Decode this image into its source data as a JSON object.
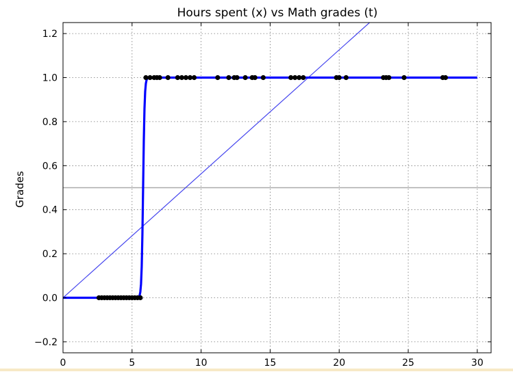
{
  "chart_data": {
    "type": "scatter",
    "title": "Hours spent (x) vs Math grades (t)",
    "xlabel": "",
    "ylabel": "Grades",
    "xlim": [
      0,
      31
    ],
    "ylim": [
      -0.25,
      1.25
    ],
    "x_ticks": [
      0,
      5,
      10,
      15,
      20,
      25,
      30
    ],
    "y_ticks": [
      -0.2,
      0.0,
      0.2,
      0.4,
      0.6,
      0.8,
      1.0,
      1.2
    ],
    "x_tick_labels": [
      "0",
      "5",
      "10",
      "15",
      "20",
      "25",
      "30"
    ],
    "y_tick_labels": [
      "−0.2",
      "0.0",
      "0.2",
      "0.4",
      "0.6",
      "0.8",
      "1.0",
      "1.2"
    ],
    "grid": true,
    "series": [
      {
        "kind": "points",
        "color": "#000000",
        "x": [
          2.6,
          2.8,
          3.0,
          3.2,
          3.4,
          3.6,
          3.8,
          4.0,
          4.2,
          4.4,
          4.6,
          4.8,
          5.0,
          5.2,
          5.4,
          5.6,
          6.0,
          6.3,
          6.6,
          6.8,
          7.0,
          7.6,
          8.3,
          8.6,
          8.9,
          9.2,
          9.5,
          11.2,
          12.0,
          12.4,
          12.6,
          13.2,
          13.7,
          13.9,
          14.5,
          16.5,
          16.8,
          17.1,
          17.4,
          19.8,
          20.0,
          20.5,
          23.2,
          23.4,
          23.6,
          24.7,
          27.5,
          27.7
        ],
        "y": [
          0,
          0,
          0,
          0,
          0,
          0,
          0,
          0,
          0,
          0,
          0,
          0,
          0,
          0,
          0,
          0,
          1,
          1,
          1,
          1,
          1,
          1,
          1,
          1,
          1,
          1,
          1,
          1,
          1,
          1,
          1,
          1,
          1,
          1,
          1,
          1,
          1,
          1,
          1,
          1,
          1,
          1,
          1,
          1,
          1,
          1,
          1,
          1
        ]
      },
      {
        "kind": "sigmoid",
        "color": "#0000ff",
        "x_range": [
          0,
          30
        ],
        "midpoint": 5.8,
        "steepness": 18
      },
      {
        "kind": "line",
        "color": "#4444ee",
        "x": [
          0,
          22.2
        ],
        "y": [
          0.0,
          1.25
        ]
      },
      {
        "kind": "hline",
        "color": "#aaaaaa",
        "y": 0.5
      }
    ]
  }
}
